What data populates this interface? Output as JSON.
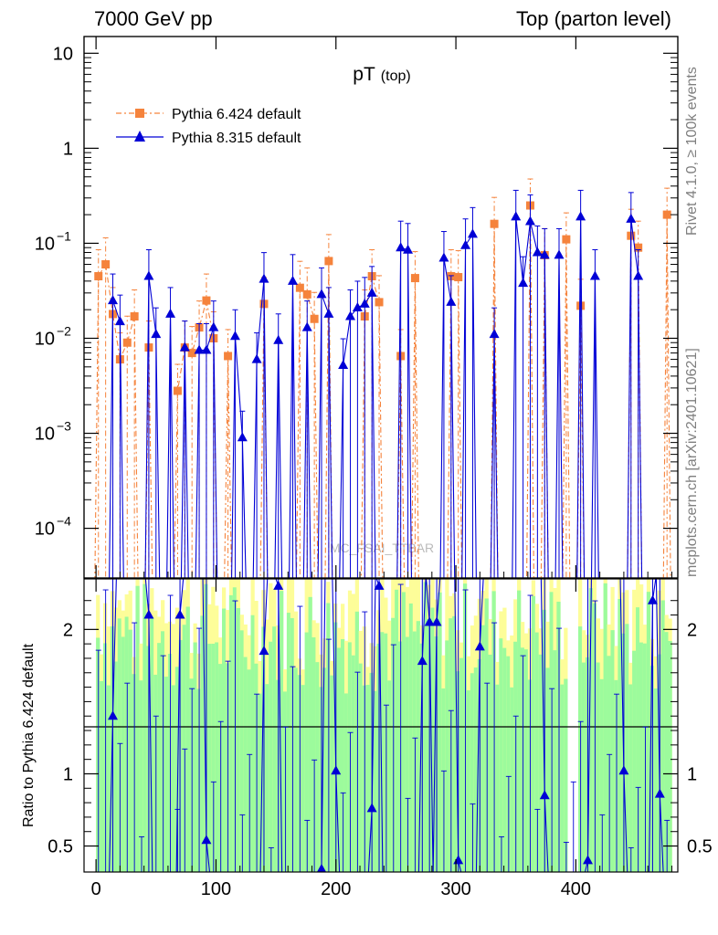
{
  "header": {
    "left": "7000 GeV pp",
    "right": "Top (parton level)"
  },
  "side_text": {
    "rivet": "Rivet 4.1.0, ≥ 100k events",
    "mcplots": "mcplots.cern.ch [arXiv:2401.10621]"
  },
  "watermark": "MC_FSAI_TTBAR",
  "colors": {
    "pythia6": "#f5833c",
    "pythia8": "#0000d6",
    "band_inner": "#9cfb9c",
    "band_outer": "#fdfd99"
  },
  "chart_data": [
    {
      "type": "line",
      "panel": "main",
      "title": "pT",
      "title_sub": "(top)",
      "yscale": "log",
      "ylim": [
        3e-05,
        15
      ],
      "xlim": [
        -10,
        485
      ],
      "y_ticks": [
        {
          "value": 10,
          "base": "10",
          "exp": ""
        },
        {
          "value": 1,
          "base": "1",
          "exp": ""
        },
        {
          "value": 0.1,
          "base": "10",
          "exp": "−1"
        },
        {
          "value": 0.01,
          "base": "10",
          "exp": "−2"
        },
        {
          "value": 0.001,
          "base": "10",
          "exp": "−3"
        },
        {
          "value": 0.0001,
          "base": "10",
          "exp": "−4"
        }
      ],
      "legend_position": "top-left",
      "series": [
        {
          "name": "Pythia 6.424 default",
          "marker": "square",
          "style": "dash-dot",
          "x": [
            2,
            8,
            14,
            20,
            26,
            32,
            44,
            68,
            74,
            80,
            86,
            92,
            98,
            110,
            140,
            170,
            176,
            182,
            194,
            224,
            230,
            236,
            254,
            266,
            296,
            302,
            332,
            362,
            374,
            392,
            404,
            446,
            452,
            476
          ],
          "values": [
            0.045,
            0.06,
            0.018,
            0.006,
            0.009,
            0.017,
            0.008,
            0.0028,
            0.008,
            0.007,
            0.013,
            0.025,
            0.01,
            0.0065,
            0.023,
            0.034,
            0.029,
            0.016,
            0.065,
            0.017,
            0.045,
            0.024,
            0.0065,
            0.043,
            0.045,
            0.044,
            0.16,
            0.25,
            0.075,
            0.11,
            0.022,
            0.12,
            0.09,
            0.2
          ]
        },
        {
          "name": "Pythia 8.315 default",
          "marker": "triangle",
          "style": "solid",
          "x": [
            14,
            20,
            44,
            50,
            62,
            74,
            86,
            92,
            98,
            116,
            122,
            134,
            140,
            152,
            164,
            176,
            188,
            194,
            206,
            212,
            218,
            224,
            230,
            254,
            260,
            290,
            296,
            308,
            314,
            332,
            350,
            356,
            362,
            368,
            374,
            386,
            404,
            416,
            446,
            452
          ],
          "values": [
            0.025,
            0.015,
            0.045,
            0.011,
            0.018,
            0.008,
            0.0075,
            0.0075,
            0.013,
            0.0105,
            0.0009,
            0.006,
            0.042,
            0.0095,
            0.04,
            0.013,
            0.029,
            0.018,
            0.0052,
            0.017,
            0.021,
            0.023,
            0.03,
            0.09,
            0.085,
            0.07,
            0.024,
            0.095,
            0.125,
            0.011,
            0.19,
            0.038,
            0.17,
            0.08,
            0.075,
            0.075,
            0.19,
            0.045,
            0.18,
            0.045
          ]
        }
      ]
    },
    {
      "type": "line",
      "panel": "ratio",
      "ylabel": "Ratio to Pythia 6.424 default",
      "ylim": [
        0.32,
        2.35
      ],
      "xlim": [
        -10,
        485
      ],
      "x_ticks": [
        0,
        100,
        200,
        300,
        400
      ],
      "y_ticks": [
        0.5,
        1,
        2
      ],
      "reference_line": 1,
      "series": [
        {
          "name": "Pythia 8.315 default",
          "x": [
            14,
            44,
            70,
            92,
            140,
            152,
            188,
            200,
            230,
            236,
            272,
            278,
            284,
            302,
            320,
            374,
            410,
            440,
            464,
            470
          ],
          "values": [
            1.4,
            2.1,
            2.1,
            0.54,
            1.85,
            2.3,
            0.34,
            1.02,
            0.76,
            2.3,
            1.78,
            2.05,
            2.05,
            0.4,
            1.88,
            0.85,
            0.4,
            1.02,
            2.2,
            0.86
          ]
        }
      ]
    }
  ]
}
